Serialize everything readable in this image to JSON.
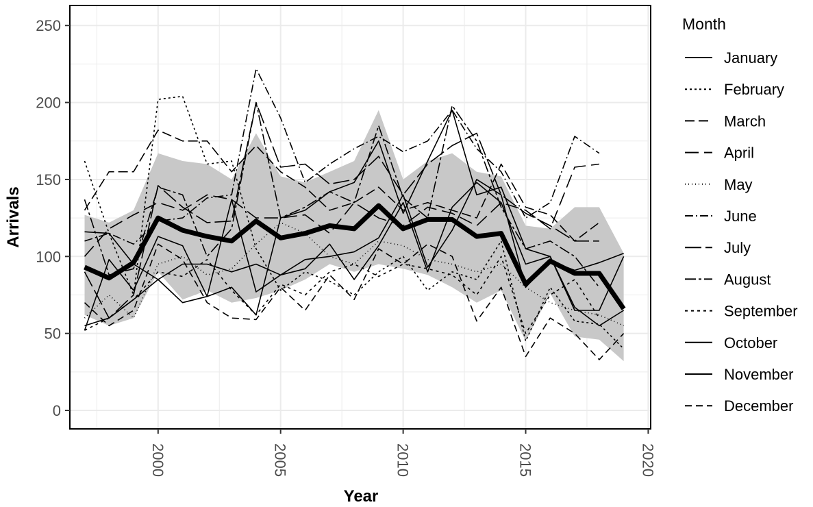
{
  "chart_data": {
    "type": "line",
    "xlabel": "Year",
    "ylabel": "Arrivals",
    "xlim": [
      1996.4,
      2020.1
    ],
    "ylim": [
      -12,
      263
    ],
    "x_ticks": [
      2000,
      2005,
      2010,
      2015,
      2020
    ],
    "x_tick_labels": [
      "2000",
      "2005",
      "2010",
      "2015",
      "2020"
    ],
    "y_ticks": [
      0,
      50,
      100,
      150,
      200,
      250
    ],
    "y_tick_labels": [
      "0",
      "50",
      "100",
      "150",
      "200",
      "250"
    ],
    "grid": true,
    "legend_title": "Month",
    "legend_position": "right",
    "x": [
      1997,
      1998,
      1999,
      2000,
      2001,
      2002,
      2003,
      2004,
      2005,
      2006,
      2007,
      2008,
      2009,
      2010,
      2011,
      2012,
      2013,
      2014,
      2015,
      2016,
      2017,
      2018,
      2019
    ],
    "series": [
      {
        "name": "January",
        "dash": "solid",
        "values": [
          116,
          115,
          95,
          85,
          70,
          74,
          137,
          77,
          88,
          98,
          100,
          103,
          112,
          140,
          93,
          117,
          150,
          140,
          80,
          97,
          91,
          96,
          102
        ]
      },
      {
        "name": "February",
        "dash": "3,4",
        "values": [
          162,
          115,
          75,
          202,
          204,
          160,
          162,
          105,
          78,
          90,
          84,
          75,
          90,
          100,
          78,
          90,
          85,
          110,
          45,
          80,
          58,
          56,
          40
        ]
      },
      {
        "name": "March",
        "dash": "14,6",
        "values": [
          130,
          155,
          155,
          182,
          175,
          175,
          155,
          172,
          155,
          145,
          130,
          135,
          145,
          130,
          135,
          130,
          125,
          160,
          132,
          127,
          110,
          122,
          null
        ]
      },
      {
        "name": "April",
        "dash": "20,8",
        "values": [
          100,
          118,
          127,
          135,
          130,
          140,
          137,
          125,
          125,
          127,
          115,
          135,
          125,
          120,
          132,
          128,
          120,
          135,
          130,
          118,
          158,
          160,
          null
        ]
      },
      {
        "name": "May",
        "dash": "1,4",
        "values": [
          60,
          75,
          60,
          95,
          100,
          88,
          92,
          108,
          122,
          115,
          100,
          95,
          110,
          107,
          98,
          95,
          90,
          95,
          80,
          70,
          65,
          62,
          55
        ]
      },
      {
        "name": "June",
        "dash": "12,4,2,4",
        "values": [
          110,
          115,
          108,
          123,
          125,
          138,
          140,
          222,
          190,
          148,
          160,
          170,
          178,
          168,
          175,
          195,
          170,
          155,
          125,
          135,
          178,
          167,
          null
        ]
      },
      {
        "name": "July",
        "dash": "24,6",
        "values": [
          90,
          60,
          75,
          146,
          132,
          122,
          123,
          200,
          158,
          160,
          147,
          150,
          165,
          140,
          160,
          172,
          180,
          140,
          128,
          120,
          110,
          110,
          null
        ]
      },
      {
        "name": "August",
        "dash": "16,4,4,4",
        "values": [
          137,
          88,
          92,
          145,
          140,
          100,
          118,
          200,
          125,
          132,
          142,
          135,
          185,
          138,
          125,
          198,
          175,
          132,
          105,
          110,
          100,
          80,
          null
        ]
      },
      {
        "name": "September",
        "dash": "4,5",
        "values": [
          52,
          60,
          72,
          90,
          87,
          98,
          78,
          62,
          82,
          75,
          90,
          95,
          87,
          95,
          92,
          88,
          75,
          100,
          50,
          75,
          85,
          60,
          null
        ]
      },
      {
        "name": "October",
        "dash": "solid",
        "values": [
          52,
          98,
          78,
          113,
          107,
          74,
          80,
          62,
          125,
          130,
          142,
          148,
          175,
          128,
          162,
          195,
          140,
          145,
          105,
          100,
          67,
          55,
          65
        ]
      },
      {
        "name": "November",
        "dash": "solid",
        "values": [
          55,
          60,
          72,
          85,
          95,
          95,
          90,
          95,
          88,
          92,
          108,
          85,
          107,
          135,
          90,
          132,
          148,
          135,
          95,
          100,
          65,
          65,
          100
        ]
      },
      {
        "name": "December",
        "dash": "10,6",
        "values": [
          70,
          55,
          65,
          108,
          98,
          70,
          60,
          59,
          80,
          65,
          88,
          72,
          105,
          95,
          108,
          100,
          58,
          80,
          35,
          60,
          50,
          33,
          50
        ]
      }
    ],
    "mean_line": [
      93,
      86,
      96,
      125,
      117,
      113,
      110,
      123,
      112,
      115,
      120,
      118,
      133,
      118,
      124,
      124,
      113,
      115,
      82,
      97,
      89,
      89,
      66
    ],
    "band_upper": [
      127,
      122,
      130,
      167,
      162,
      160,
      150,
      180,
      152,
      148,
      155,
      162,
      195,
      150,
      162,
      167,
      155,
      152,
      120,
      118,
      132,
      132,
      102
    ],
    "band_lower": [
      62,
      55,
      60,
      90,
      72,
      78,
      70,
      73,
      78,
      85,
      95,
      90,
      95,
      92,
      88,
      80,
      70,
      78,
      45,
      76,
      48,
      46,
      32
    ]
  }
}
